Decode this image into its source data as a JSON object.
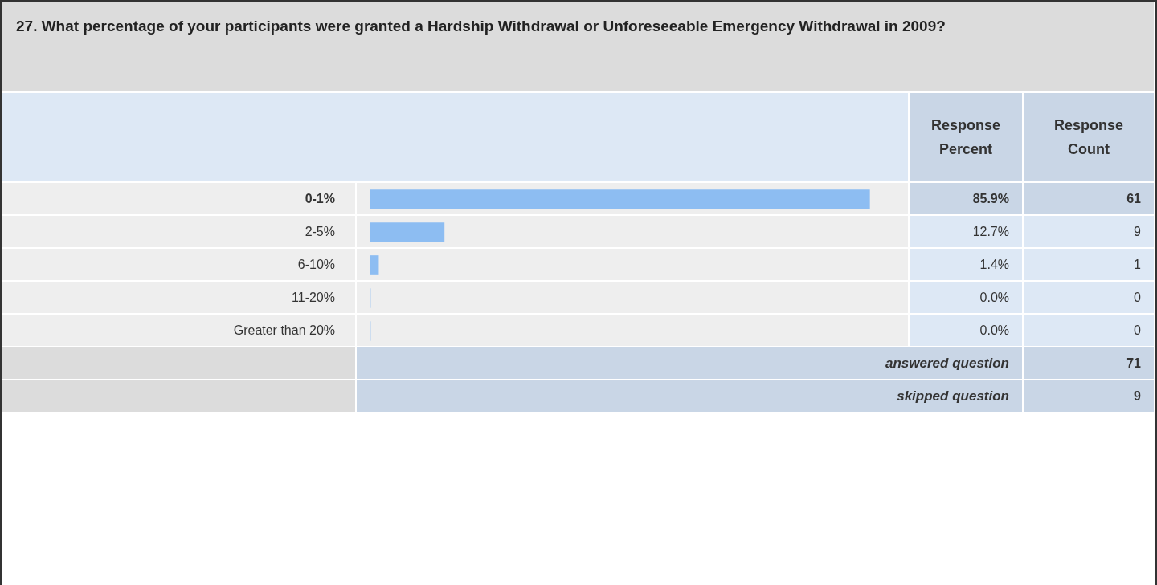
{
  "chart_data": {
    "type": "bar",
    "orientation": "horizontal",
    "title": "27. What percentage of your participants were granted a Hardship Withdrawal or Unforeseeable Emergency Withdrawal in 2009?",
    "categories": [
      "0-1%",
      "2-5%",
      "6-10%",
      "11-20%",
      "Greater than 20%"
    ],
    "series": [
      {
        "name": "Response Percent",
        "color": "#8dbdf2",
        "values": [
          85.9,
          12.7,
          1.4,
          0.0,
          0.0
        ],
        "value_labels": [
          "85.9%",
          "12.7%",
          "1.4%",
          "0.0%",
          "0.0%"
        ]
      }
    ],
    "annotations": [
      "Response Count",
      "61",
      "9",
      "1",
      "0",
      "0",
      "answered question",
      "71",
      "skipped question",
      "9"
    ]
  }
}
